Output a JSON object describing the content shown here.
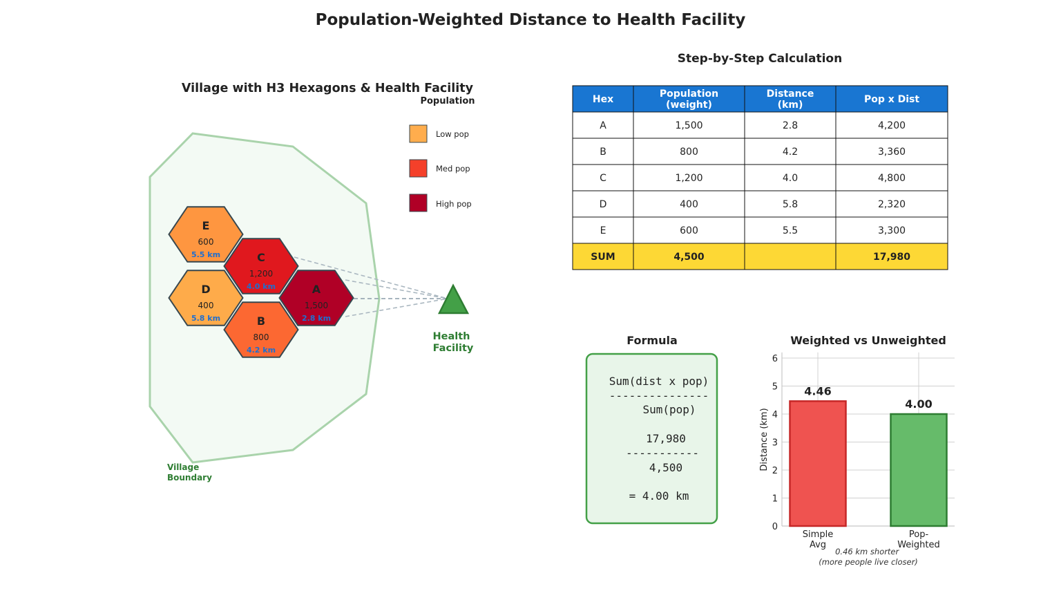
{
  "title": "Population-Weighted Distance to Health Facility",
  "map": {
    "title": "Village with H3 Hexagons & Health Facility",
    "boundary_label": [
      "Village",
      "Boundary"
    ],
    "facility_label": [
      "Health",
      "Facility"
    ],
    "legend": {
      "title": "Population",
      "items": [
        {
          "label": "Low pop",
          "color": "#FFAD4D"
        },
        {
          "label": "Med pop",
          "color": "#F4402A"
        },
        {
          "label": "High pop",
          "color": "#B00026"
        }
      ]
    },
    "hexes": [
      {
        "id": "E",
        "pop": "600",
        "dist": "5.5 km",
        "color": "#FE9640"
      },
      {
        "id": "D",
        "pop": "400",
        "dist": "5.8 km",
        "color": "#FEAB4A"
      },
      {
        "id": "C",
        "pop": "1,200",
        "dist": "4.0 km",
        "color": "#E0181E"
      },
      {
        "id": "B",
        "pop": "800",
        "dist": "4.2 km",
        "color": "#FC6832"
      },
      {
        "id": "A",
        "pop": "1,500",
        "dist": "2.8 km",
        "color": "#B00026"
      }
    ]
  },
  "table": {
    "title": "Step-by-Step Calculation",
    "headers": [
      [
        "Hex"
      ],
      [
        "Population",
        "(weight)"
      ],
      [
        "Distance",
        "(km)"
      ],
      [
        "Pop x Dist"
      ]
    ],
    "rows": [
      [
        "A",
        "1,500",
        "2.8",
        "4,200"
      ],
      [
        "B",
        "800",
        "4.2",
        "3,360"
      ],
      [
        "C",
        "1,200",
        "4.0",
        "4,800"
      ],
      [
        "D",
        "400",
        "5.8",
        "2,320"
      ],
      [
        "E",
        "600",
        "5.5",
        "3,300"
      ]
    ],
    "sum_row": [
      "SUM",
      "4,500",
      "",
      "17,980"
    ],
    "header_color": "#1976D2",
    "sum_color": "#FDD835"
  },
  "formula": {
    "title": "Formula",
    "lines": [
      "Sum(dist x pop)",
      "---------------",
      "Sum(pop)",
      "17,980",
      "-----------",
      "4,500",
      "= 4.00 km"
    ]
  },
  "chart_data": {
    "type": "bar",
    "title": "Weighted vs Unweighted",
    "categories": [
      [
        "Simple",
        "Avg"
      ],
      [
        "Pop-",
        "Weighted"
      ]
    ],
    "values": [
      4.46,
      4.0
    ],
    "data_labels": [
      "4.46",
      "4.00"
    ],
    "colors": [
      "#EF5350",
      "#66BB6A"
    ],
    "edge_colors": [
      "#C62828",
      "#2E7D32"
    ],
    "xlabel": "",
    "ylabel": "Distance (km)",
    "ylim": [
      0,
      6.2
    ],
    "yticks": [
      0,
      1,
      2,
      3,
      4,
      5,
      6
    ],
    "grid": true,
    "annotation": [
      "0.46 km shorter",
      "(more people live closer)"
    ]
  }
}
